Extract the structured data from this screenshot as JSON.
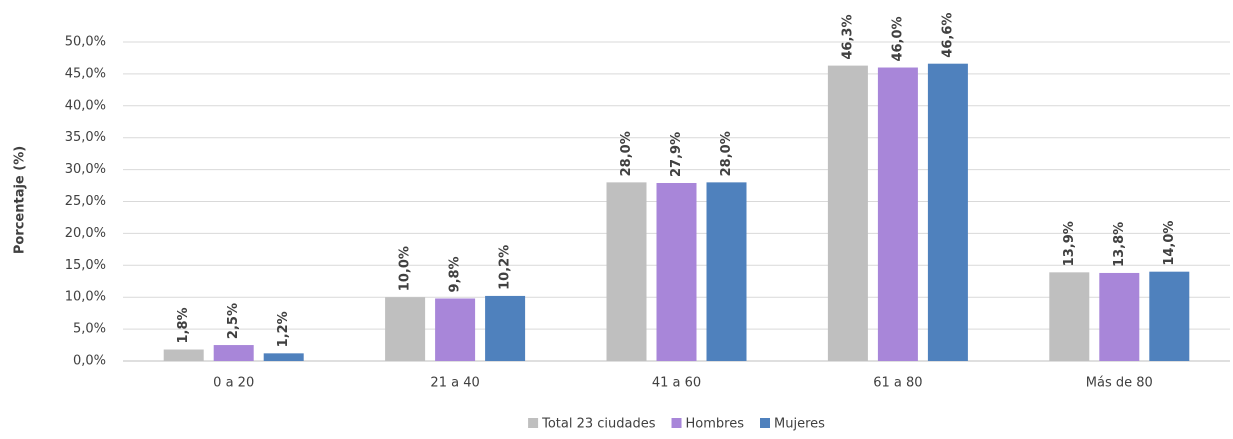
{
  "chart_data": {
    "type": "bar",
    "y_label": "Porcentaje (%)",
    "categories": [
      "0 a 20",
      "21 a 40",
      "41 a 60",
      "61 a 80",
      "Más de 80"
    ],
    "series": [
      {
        "name": "Total 23 ciudades",
        "color": "#bfbfbf",
        "values": [
          1.8,
          10.0,
          28.0,
          46.3,
          13.9
        ],
        "value_labels": [
          "1,8%",
          "10,0%",
          "28,0%",
          "46,3%",
          "13,9%"
        ]
      },
      {
        "name": "Hombres",
        "color": "#a886d9",
        "values": [
          2.5,
          9.8,
          27.9,
          46.0,
          13.8
        ],
        "value_labels": [
          "2,5%",
          "9,8%",
          "27,9%",
          "46,0%",
          "13,8%"
        ]
      },
      {
        "name": "Mujeres",
        "color": "#4f81bd",
        "values": [
          1.2,
          10.2,
          28.0,
          46.6,
          14.0
        ],
        "value_labels": [
          "1,2%",
          "10,2%",
          "28,0%",
          "46,6%",
          "14,0%"
        ]
      }
    ],
    "ylim": [
      0,
      50
    ],
    "yticks": [
      {
        "value": 0,
        "label": "0,0%"
      },
      {
        "value": 5,
        "label": "5,0%"
      },
      {
        "value": 10,
        "label": "10,0%"
      },
      {
        "value": 15,
        "label": "15,0%"
      },
      {
        "value": 20,
        "label": "20,0%"
      },
      {
        "value": 25,
        "label": "25,0%"
      },
      {
        "value": 30,
        "label": "30,0%"
      },
      {
        "value": 35,
        "label": "35,0%"
      },
      {
        "value": 40,
        "label": "40,0%"
      },
      {
        "value": 45,
        "label": "45,0%"
      },
      {
        "value": 50,
        "label": "50,0%"
      }
    ],
    "grid": true,
    "legend": "bottom"
  }
}
